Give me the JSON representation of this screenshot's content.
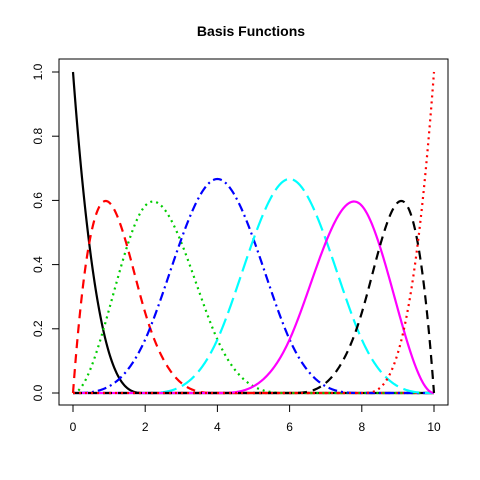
{
  "chart_data": {
    "type": "line",
    "title": "Basis Functions",
    "xlabel": "",
    "ylabel": "",
    "xlim": [
      0,
      10
    ],
    "ylim": [
      0,
      1
    ],
    "x_ticks": [
      0,
      2,
      4,
      6,
      8,
      10
    ],
    "x_tick_labels": [
      "0",
      "2",
      "4",
      "6",
      "8",
      "10"
    ],
    "y_ticks": [
      0,
      0.2,
      0.4,
      0.6,
      0.8,
      1
    ],
    "y_tick_labels": [
      "0.0",
      "0.2",
      "0.4",
      "0.6",
      "0.8",
      "1.0"
    ],
    "grid": false,
    "legend": "none",
    "basis": "cubic B-spline",
    "knots": [
      0,
      0,
      0,
      0,
      2,
      4,
      6,
      8,
      10,
      10,
      10,
      10
    ],
    "x": [
      0,
      0.25,
      0.5,
      0.75,
      1,
      1.25,
      1.5,
      1.75,
      2,
      2.25,
      2.5,
      2.75,
      3,
      3.25,
      3.5,
      3.75,
      4,
      4.25,
      4.5,
      4.75,
      5,
      5.25,
      5.5,
      5.75,
      6,
      6.25,
      6.5,
      6.75,
      7,
      7.25,
      7.5,
      7.75,
      8,
      8.25,
      8.5,
      8.75,
      9,
      9.25,
      9.5,
      9.75,
      10
    ],
    "series": [
      {
        "color": "#000000",
        "dash": "solid",
        "values": [
          1,
          0.67,
          0.42,
          0.24,
          0.125,
          0.05,
          0.016,
          0.002,
          0,
          0,
          0,
          0,
          0,
          0,
          0,
          0,
          0,
          0,
          0,
          0,
          0,
          0,
          0,
          0,
          0,
          0,
          0,
          0,
          0,
          0,
          0,
          0,
          0,
          0,
          0,
          0,
          0,
          0,
          0,
          0,
          0
        ]
      },
      {
        "color": "#ff0000",
        "dash": "dashed",
        "values": [
          0,
          0.31,
          0.49,
          0.58,
          0.6,
          0.55,
          0.44,
          0.32,
          0.25,
          0.17,
          0.105,
          0.055,
          0.031,
          0.013,
          0.004,
          0.001,
          0,
          0,
          0,
          0,
          0,
          0,
          0,
          0,
          0,
          0,
          0,
          0,
          0,
          0,
          0,
          0,
          0,
          0,
          0,
          0,
          0,
          0,
          0,
          0,
          0
        ]
      },
      {
        "color": "#00cd00",
        "dash": "dotted",
        "values": [
          0,
          0.02,
          0.08,
          0.17,
          0.26,
          0.38,
          0.49,
          0.56,
          0.58,
          0.6,
          0.58,
          0.51,
          0.44,
          0.35,
          0.26,
          0.18,
          0.12,
          0.07,
          0.04,
          0.015,
          0.003,
          0,
          0,
          0,
          0,
          0,
          0,
          0,
          0,
          0,
          0,
          0,
          0,
          0,
          0,
          0,
          0,
          0,
          0,
          0,
          0
        ]
      },
      {
        "color": "#0000ff",
        "dash": "dotdash",
        "values": [
          0,
          0,
          0,
          0,
          0,
          0,
          0,
          0,
          0.17,
          0.23,
          0.31,
          0.4,
          0.48,
          0.56,
          0.61,
          0.65,
          0.667,
          0.65,
          0.6,
          0.53,
          0.46,
          0.38,
          0.3,
          0.22,
          0.17,
          0.12,
          0.07,
          0.04,
          0.02,
          0.01,
          0.003,
          0.001,
          0,
          0,
          0,
          0,
          0,
          0,
          0,
          0,
          0
        ]
      },
      {
        "color": "#00ffff",
        "dash": "longdash",
        "values": [
          0,
          0,
          0,
          0,
          0,
          0,
          0,
          0,
          0,
          0,
          0,
          0,
          0.003,
          0.01,
          0.03,
          0.06,
          0.17,
          0.23,
          0.31,
          0.4,
          0.48,
          0.56,
          0.62,
          0.65,
          0.667,
          0.65,
          0.61,
          0.55,
          0.48,
          0.4,
          0.32,
          0.24,
          0.17,
          0.11,
          0.06,
          0.03,
          0.01,
          0.004,
          0.001,
          0,
          0
        ]
      },
      {
        "color": "#ff00ff",
        "dash": "solid",
        "values": [
          0,
          0,
          0,
          0,
          0,
          0,
          0,
          0,
          0,
          0,
          0,
          0,
          0,
          0,
          0,
          0,
          0,
          0,
          0,
          0.003,
          0.02,
          0.05,
          0.09,
          0.12,
          0.17,
          0.24,
          0.32,
          0.4,
          0.48,
          0.55,
          0.59,
          0.6,
          0.58,
          0.51,
          0.42,
          0.32,
          0.22,
          0.14,
          0.07,
          0.02,
          0
        ]
      },
      {
        "color": "#000000",
        "dash": "dashed",
        "values": [
          0,
          0,
          0,
          0,
          0,
          0,
          0,
          0,
          0,
          0,
          0,
          0,
          0,
          0,
          0,
          0,
          0,
          0,
          0,
          0,
          0,
          0,
          0,
          0,
          0,
          0,
          0.003,
          0.01,
          0.03,
          0.06,
          0.11,
          0.17,
          0.25,
          0.36,
          0.47,
          0.56,
          0.6,
          0.58,
          0.49,
          0.31,
          0
        ]
      },
      {
        "color": "#ff0000",
        "dash": "dotted",
        "values": [
          0,
          0,
          0,
          0,
          0,
          0,
          0,
          0,
          0,
          0,
          0,
          0,
          0,
          0,
          0,
          0,
          0,
          0,
          0,
          0,
          0,
          0,
          0,
          0,
          0,
          0,
          0,
          0,
          0,
          0,
          0,
          0,
          0,
          0.002,
          0.016,
          0.05,
          0.125,
          0.24,
          0.42,
          0.67,
          1
        ]
      }
    ]
  }
}
